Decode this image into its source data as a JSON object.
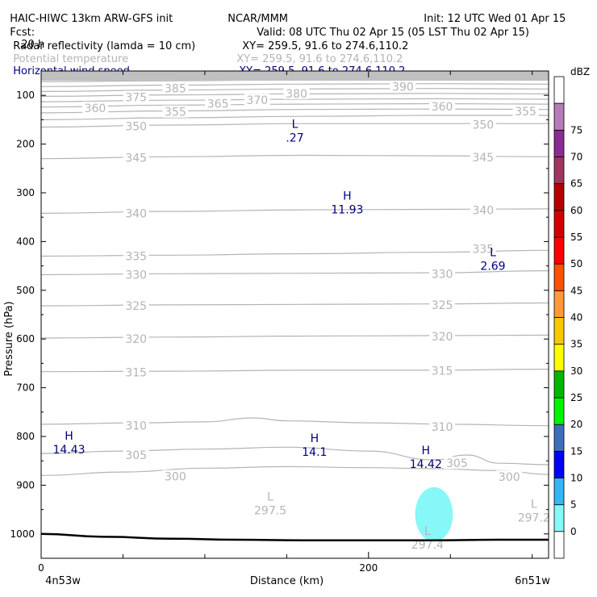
{
  "header": {
    "title": "HAIC-HIWC 13km ARW-GFS init",
    "org": "NCAR/MMM",
    "init": "Init: 12 UTC Wed 01 Apr 15",
    "fcst_label": "Fcst:",
    "fcst_value": "20 h",
    "valid": "Valid: 08 UTC Thu 02 Apr 15 (05 LST Thu 02 Apr 15)"
  },
  "fields": [
    {
      "name": "Radar reflectivity (lamda = 10 cm)",
      "xy": "XY= 259.5, 91.6 to 274.6,110.2",
      "color": "#000000"
    },
    {
      "name": "Potential temperature",
      "xy": "XY= 259.5, 91.6 to 274.6,110.2",
      "color": "#b4b4b4"
    },
    {
      "name": "Horizontal wind speed",
      "xy": "XY= 259.5, 91.6 to 274.6,110.2",
      "color": "#000080"
    }
  ],
  "chart_data": {
    "type": "cross-section contour",
    "ylabel": "Pressure (hPa)",
    "xlabel": "Distance (km)",
    "x_ticks": [
      0,
      200
    ],
    "xlim": [
      0,
      310
    ],
    "y_ticks": [
      100,
      200,
      300,
      400,
      500,
      600,
      700,
      800,
      900,
      1000
    ],
    "ylim": [
      50,
      1050
    ],
    "left_endpoint": "4n53w",
    "right_endpoint": "6n51w",
    "theta_contours": [
      {
        "value": 300,
        "label": "300",
        "points": [
          [
            0,
            880
          ],
          [
            50,
            873
          ],
          [
            100,
            865
          ],
          [
            150,
            862
          ],
          [
            200,
            864
          ],
          [
            240,
            866
          ],
          [
            280,
            870
          ],
          [
            310,
            878
          ]
        ]
      },
      {
        "value": 305,
        "label": "305",
        "points": [
          [
            0,
            835
          ],
          [
            50,
            830
          ],
          [
            100,
            826
          ],
          [
            150,
            822
          ],
          [
            200,
            830
          ],
          [
            240,
            848
          ],
          [
            260,
            838
          ],
          [
            280,
            855
          ],
          [
            310,
            858
          ]
        ]
      },
      {
        "value": 310,
        "label": "310",
        "points": [
          [
            0,
            775
          ],
          [
            60,
            772
          ],
          [
            100,
            770
          ],
          [
            130,
            762
          ],
          [
            150,
            768
          ],
          [
            200,
            772
          ],
          [
            250,
            775
          ],
          [
            310,
            778
          ]
        ]
      },
      {
        "value": 315,
        "label": "315",
        "points": [
          [
            0,
            667
          ],
          [
            80,
            666
          ],
          [
            160,
            664
          ],
          [
            240,
            664
          ],
          [
            310,
            662
          ]
        ]
      },
      {
        "value": 320,
        "label": "320",
        "points": [
          [
            0,
            598
          ],
          [
            80,
            596
          ],
          [
            160,
            594
          ],
          [
            240,
            593
          ],
          [
            310,
            592
          ]
        ]
      },
      {
        "value": 325,
        "label": "325",
        "points": [
          [
            0,
            532
          ],
          [
            80,
            530
          ],
          [
            160,
            529
          ],
          [
            240,
            528
          ],
          [
            310,
            526
          ]
        ]
      },
      {
        "value": 330,
        "label": "330",
        "points": [
          [
            0,
            468
          ],
          [
            80,
            466
          ],
          [
            160,
            465
          ],
          [
            240,
            464
          ],
          [
            310,
            460
          ]
        ]
      },
      {
        "value": 335,
        "label": "335",
        "points": [
          [
            0,
            430
          ],
          [
            80,
            428
          ],
          [
            160,
            425
          ],
          [
            240,
            422
          ],
          [
            310,
            418
          ]
        ]
      },
      {
        "value": 340,
        "label": "340",
        "points": [
          [
            0,
            342
          ],
          [
            80,
            338
          ],
          [
            160,
            335
          ],
          [
            240,
            334
          ],
          [
            310,
            333
          ]
        ]
      },
      {
        "value": 345,
        "label": "345",
        "points": [
          [
            0,
            230
          ],
          [
            80,
            226
          ],
          [
            160,
            223
          ],
          [
            240,
            224
          ],
          [
            310,
            226
          ]
        ]
      },
      {
        "value": 350,
        "label": "350",
        "points": [
          [
            0,
            165
          ],
          [
            80,
            161
          ],
          [
            160,
            158
          ],
          [
            240,
            158
          ],
          [
            310,
            158
          ]
        ]
      },
      {
        "value": 355,
        "label": "355",
        "points": [
          [
            0,
            150
          ],
          [
            80,
            146
          ],
          [
            160,
            143
          ],
          [
            240,
            141
          ],
          [
            310,
            141
          ]
        ]
      },
      {
        "value": 360,
        "label": "360",
        "points": [
          [
            0,
            136
          ],
          [
            80,
            132
          ],
          [
            160,
            129
          ],
          [
            240,
            128
          ],
          [
            310,
            129
          ]
        ]
      },
      {
        "value": 365,
        "label": "365",
        "points": [
          [
            0,
            124
          ],
          [
            80,
            120
          ],
          [
            160,
            118
          ],
          [
            240,
            117
          ],
          [
            310,
            118
          ]
        ]
      },
      {
        "value": 370,
        "label": "370",
        "points": [
          [
            0,
            113
          ],
          [
            80,
            110
          ],
          [
            160,
            108
          ],
          [
            240,
            107
          ],
          [
            310,
            108
          ]
        ]
      },
      {
        "value": 375,
        "label": "375",
        "points": [
          [
            0,
            102
          ],
          [
            80,
            99
          ],
          [
            160,
            97
          ],
          [
            240,
            96
          ],
          [
            310,
            97
          ]
        ]
      },
      {
        "value": 380,
        "label": "380",
        "points": [
          [
            0,
            92
          ],
          [
            80,
            89
          ],
          [
            160,
            87
          ],
          [
            240,
            86
          ],
          [
            310,
            87
          ]
        ]
      },
      {
        "value": 385,
        "label": "385",
        "points": [
          [
            0,
            82
          ],
          [
            80,
            79
          ],
          [
            160,
            77
          ],
          [
            240,
            76
          ],
          [
            310,
            77
          ]
        ]
      },
      {
        "value": 390,
        "label": "390",
        "points": [
          [
            0,
            72
          ],
          [
            80,
            70
          ],
          [
            160,
            68
          ],
          [
            240,
            67
          ],
          [
            310,
            68
          ]
        ]
      }
    ],
    "theta_labels": [
      {
        "text": "300",
        "x": 82,
        "p": 882
      },
      {
        "text": "305",
        "x": 58,
        "p": 838
      },
      {
        "text": "305",
        "x": 254,
        "p": 855
      },
      {
        "text": "300",
        "x": 286,
        "p": 883
      },
      {
        "text": "310",
        "x": 58,
        "p": 778
      },
      {
        "text": "310",
        "x": 245,
        "p": 780
      },
      {
        "text": "315",
        "x": 58,
        "p": 668
      },
      {
        "text": "315",
        "x": 245,
        "p": 665
      },
      {
        "text": "320",
        "x": 58,
        "p": 600
      },
      {
        "text": "320",
        "x": 245,
        "p": 595
      },
      {
        "text": "325",
        "x": 58,
        "p": 532
      },
      {
        "text": "325",
        "x": 245,
        "p": 530
      },
      {
        "text": "330",
        "x": 58,
        "p": 468
      },
      {
        "text": "330",
        "x": 245,
        "p": 466
      },
      {
        "text": "335",
        "x": 58,
        "p": 430
      },
      {
        "text": "335",
        "x": 270,
        "p": 415
      },
      {
        "text": "340",
        "x": 58,
        "p": 342
      },
      {
        "text": "340",
        "x": 270,
        "p": 336
      },
      {
        "text": "345",
        "x": 58,
        "p": 228
      },
      {
        "text": "345",
        "x": 270,
        "p": 227
      },
      {
        "text": "350",
        "x": 58,
        "p": 163
      },
      {
        "text": "350",
        "x": 270,
        "p": 160
      },
      {
        "text": "355",
        "x": 82,
        "p": 134
      },
      {
        "text": "355",
        "x": 296,
        "p": 133
      },
      {
        "text": "360",
        "x": 33,
        "p": 126
      },
      {
        "text": "360",
        "x": 245,
        "p": 123
      },
      {
        "text": "365",
        "x": 108,
        "p": 117
      },
      {
        "text": "370",
        "x": 132,
        "p": 110
      },
      {
        "text": "375",
        "x": 58,
        "p": 104
      },
      {
        "text": "380",
        "x": 156,
        "p": 96
      },
      {
        "text": "385",
        "x": 82,
        "p": 86
      },
      {
        "text": "390",
        "x": 221,
        "p": 82
      }
    ],
    "theta_extrema": [
      {
        "type": "L",
        "value": "297.5",
        "x": 140,
        "p": 940
      },
      {
        "type": "L",
        "value": "297.4",
        "x": 236,
        "p": 1010
      },
      {
        "type": "L",
        "value": "297.2",
        "x": 301,
        "p": 955
      }
    ],
    "wind_extrema": [
      {
        "type": "L",
        "value": ".27",
        "x": 155,
        "p": 175
      },
      {
        "type": "H",
        "value": "11.93",
        "x": 187,
        "p": 322
      },
      {
        "type": "L",
        "value": "2.69",
        "x": 276,
        "p": 438
      },
      {
        "type": "H",
        "value": "14.43",
        "x": 17,
        "p": 815
      },
      {
        "type": "H",
        "value": "14.1",
        "x": 167,
        "p": 820
      },
      {
        "type": "H",
        "value": "14.42",
        "x": 235,
        "p": 845
      }
    ],
    "reflectivity_areas": [
      {
        "dbz": 5,
        "color": "#87f7f7",
        "x_center": 240,
        "p_center": 960,
        "x_halfwidth": 11.5,
        "p_halfheight": 56
      }
    ],
    "terrain": {
      "points": [
        [
          0,
          1000
        ],
        [
          40,
          1006
        ],
        [
          80,
          1010
        ],
        [
          120,
          1012
        ],
        [
          160,
          1013
        ],
        [
          200,
          1013
        ],
        [
          240,
          1013
        ],
        [
          280,
          1012
        ],
        [
          310,
          1012
        ]
      ]
    },
    "colorbar": {
      "unit": "dBZ",
      "levels": [
        0,
        5,
        10,
        15,
        20,
        25,
        30,
        35,
        40,
        45,
        50,
        55,
        60,
        65,
        70,
        75
      ],
      "colors": [
        "#87f7f7",
        "#36b5f2",
        "#0000f6",
        "#3d6ebb",
        "#00f600",
        "#00b600",
        "#fdfd00",
        "#f8c900",
        "#fe9a3b",
        "#fd5100",
        "#fe0000",
        "#d40000",
        "#b60000",
        "#a0355f",
        "#8a2d92",
        "#b67cba"
      ]
    }
  }
}
